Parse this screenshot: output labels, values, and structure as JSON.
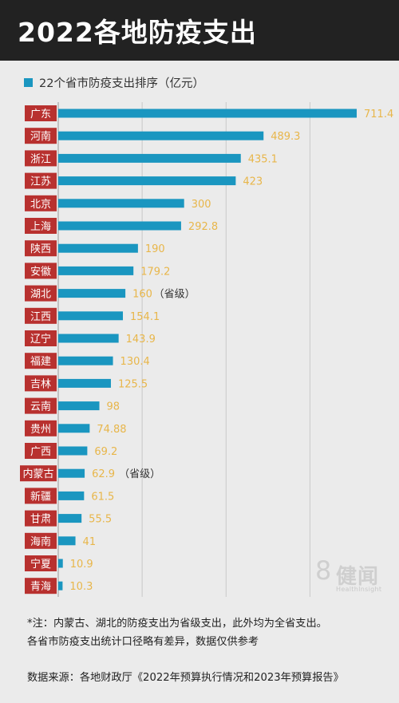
{
  "header": {
    "title": "2022各地防疫支出"
  },
  "legend": {
    "label": "22个省市防疫支出排序（亿元）"
  },
  "colors": {
    "bar": "#1a96c0",
    "label_bg": "#b8312f",
    "value": "#e8b64a",
    "header_bg": "#222222",
    "background": "#ebebeb"
  },
  "chart_data": {
    "type": "bar",
    "orientation": "horizontal",
    "title": "",
    "series": [
      {
        "name": "22个省市防疫支出排序（亿元）"
      }
    ],
    "categories": [
      "广东",
      "河南",
      "浙江",
      "江苏",
      "北京",
      "上海",
      "陕西",
      "安徽",
      "湖北",
      "江西",
      "辽宁",
      "福建",
      "吉林",
      "云南",
      "贵州",
      "广西",
      "内蒙古",
      "新疆",
      "甘肃",
      "海南",
      "宁夏",
      "青海"
    ],
    "values": [
      711.4,
      489.3,
      435.1,
      423,
      300,
      292.8,
      190,
      179.2,
      160,
      154.1,
      143.9,
      130.4,
      125.5,
      98,
      74.88,
      69.2,
      62.9,
      61.5,
      55.5,
      41,
      10.9,
      10.3
    ],
    "value_labels": [
      "711.4",
      "489.3",
      "435.1",
      "423",
      "300",
      "292.8",
      "190",
      "179.2",
      "160",
      "154.1",
      "143.9",
      "130.4",
      "125.5",
      "98",
      "74.88",
      "69.2",
      "62.9",
      "61.5",
      "55.5",
      "41",
      "10.9",
      "10.3"
    ],
    "annotations": [
      {
        "category": "湖北",
        "text": "（省级）"
      },
      {
        "category": "内蒙古",
        "text": "（省级）"
      }
    ],
    "xlim": [
      0,
      800
    ],
    "grid": true
  },
  "notes": {
    "line1": "*注：内蒙古、湖北的防疫支出为省级支出，此外均为全省支出。",
    "line2": "各省市防疫支出统计口径略有差异，数据仅供参考"
  },
  "source": "数据来源：各地财政厅《2022年预算执行情况和2023年预算报告》",
  "watermark": {
    "number": "8",
    "name": "健闻",
    "sub": "HealthInsight"
  }
}
